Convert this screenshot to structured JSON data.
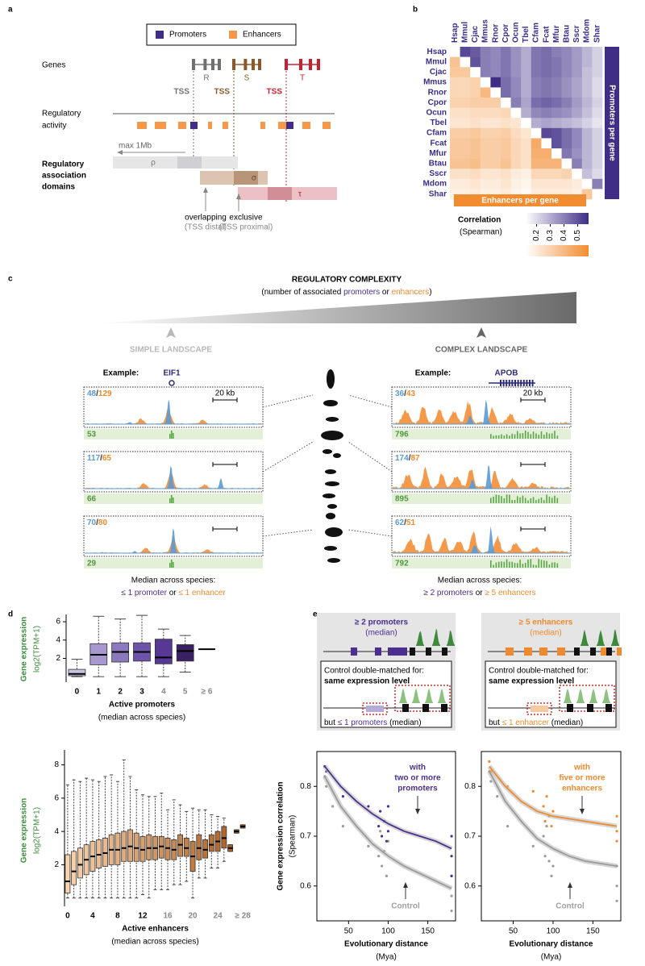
{
  "panel_labels": [
    "a",
    "b",
    "c",
    "d",
    "e"
  ],
  "panel_a": {
    "legend": [
      "Promoters",
      "Enhancers"
    ],
    "legend_colors": [
      "#3f2d86",
      "#f4994a"
    ],
    "genes_label": "Genes",
    "gene_names": [
      "R",
      "S",
      "T"
    ],
    "gene_colors": [
      "#707070",
      "#8a5a2b",
      "#c8202f"
    ],
    "tss_labels": [
      "TSS",
      "TSS",
      "TSS"
    ],
    "activity_label": [
      "Regulatory",
      "activity"
    ],
    "max_range": "max 1Mb",
    "domains_label": [
      "Regulatory",
      "association",
      "domains"
    ],
    "domain_names": [
      "ρ",
      "σ",
      "τ"
    ],
    "overlapping": [
      "overlapping",
      "(TSS distal)"
    ],
    "exclusive": [
      "exclusive",
      "(TSS proximal)"
    ]
  },
  "chart_data": [
    {
      "type": "heatmap",
      "species": [
        "Hsap",
        "Mmul",
        "Cjac",
        "Mmus",
        "Rnor",
        "Cpor",
        "Ocun",
        "Tbel",
        "Cfam",
        "Fcat",
        "Mfur",
        "Btau",
        "Sscr",
        "Mdom",
        "Shar"
      ],
      "matrix": [
        [
          null,
          0.52,
          0.48,
          0.4,
          0.38,
          0.42,
          0.36,
          0.3,
          0.42,
          0.44,
          0.4,
          0.38,
          0.34,
          0.28,
          0.22
        ],
        [
          0.36,
          null,
          0.5,
          0.4,
          0.38,
          0.42,
          0.36,
          0.3,
          0.42,
          0.44,
          0.42,
          0.38,
          0.34,
          0.28,
          0.22
        ],
        [
          0.34,
          0.34,
          null,
          0.4,
          0.38,
          0.42,
          0.36,
          0.3,
          0.42,
          0.44,
          0.42,
          0.38,
          0.34,
          0.26,
          0.22
        ],
        [
          0.28,
          0.28,
          0.3,
          null,
          0.58,
          0.44,
          0.38,
          0.3,
          0.4,
          0.42,
          0.4,
          0.36,
          0.32,
          0.26,
          0.2
        ],
        [
          0.28,
          0.28,
          0.3,
          0.4,
          null,
          0.44,
          0.38,
          0.3,
          0.4,
          0.42,
          0.4,
          0.36,
          0.32,
          0.26,
          0.2
        ],
        [
          0.3,
          0.3,
          0.32,
          0.32,
          0.32,
          null,
          0.4,
          0.32,
          0.44,
          0.46,
          0.44,
          0.4,
          0.34,
          0.28,
          0.22
        ],
        [
          0.24,
          0.24,
          0.26,
          0.26,
          0.26,
          0.28,
          null,
          0.3,
          0.38,
          0.4,
          0.38,
          0.36,
          0.32,
          0.26,
          0.2
        ],
        [
          0.22,
          0.22,
          0.24,
          0.22,
          0.22,
          0.24,
          0.22,
          null,
          0.3,
          0.32,
          0.3,
          0.28,
          0.26,
          0.22,
          0.18
        ],
        [
          0.32,
          0.32,
          0.34,
          0.3,
          0.3,
          0.32,
          0.26,
          0.22,
          null,
          0.52,
          0.5,
          0.44,
          0.38,
          0.28,
          0.22
        ],
        [
          0.34,
          0.34,
          0.36,
          0.32,
          0.32,
          0.34,
          0.28,
          0.24,
          0.46,
          null,
          0.5,
          0.44,
          0.38,
          0.28,
          0.22
        ],
        [
          0.34,
          0.34,
          0.36,
          0.32,
          0.32,
          0.34,
          0.28,
          0.24,
          0.44,
          0.44,
          null,
          0.42,
          0.36,
          0.28,
          0.22
        ],
        [
          0.36,
          0.36,
          0.38,
          0.32,
          0.32,
          0.36,
          0.28,
          0.24,
          0.42,
          0.42,
          0.42,
          null,
          0.4,
          0.28,
          0.22
        ],
        [
          0.24,
          0.24,
          0.26,
          0.22,
          0.22,
          0.24,
          0.2,
          0.18,
          0.28,
          0.28,
          0.28,
          0.3,
          null,
          0.26,
          0.2
        ],
        [
          0.2,
          0.2,
          0.22,
          0.2,
          0.2,
          0.22,
          0.18,
          0.16,
          0.22,
          0.22,
          0.22,
          0.22,
          0.2,
          null,
          0.4
        ],
        [
          0.18,
          0.18,
          0.2,
          0.18,
          0.18,
          0.2,
          0.16,
          0.14,
          0.2,
          0.2,
          0.2,
          0.2,
          0.18,
          0.34,
          null
        ]
      ],
      "upper_label": "Promoters per gene",
      "lower_label": "Enhancers per gene",
      "upper_color": "#3f2d86",
      "lower_color": "#f28c30",
      "colorbar_title": "Correlation",
      "colorbar_subtitle": "(Spearman)",
      "clim": [
        0.12,
        0.58
      ],
      "colorbar_ticks": [
        0.2,
        0.3,
        0.4,
        0.5
      ]
    },
    {
      "type": "box",
      "y_label": [
        "Gene expression",
        "log2(TPM+1)"
      ],
      "x_label": "Active promoters",
      "x_sublabel": "(median across species)",
      "categories": [
        "0",
        "1",
        "2",
        "3",
        "4",
        "5",
        "≥ 6"
      ],
      "category_label_colors": [
        "#000000",
        "#000000",
        "#000000",
        "#000000",
        "#888888",
        "#888888",
        "#888888"
      ],
      "whislo": [
        0,
        0,
        0,
        0,
        0,
        0.5,
        null
      ],
      "q1": [
        0.1,
        1.3,
        1.6,
        1.7,
        1.4,
        1.7,
        null
      ],
      "median": [
        0.3,
        2.4,
        2.7,
        2.7,
        2.1,
        2.8,
        3.0
      ],
      "q3": [
        0.8,
        3.6,
        3.7,
        3.7,
        4.1,
        3.5,
        null
      ],
      "whishi": [
        1.9,
        6.6,
        6.3,
        6.7,
        5.2,
        4.5,
        null
      ],
      "colors": [
        "#cbc3e3",
        "#a898cf",
        "#8c79bd",
        "#6e53a9",
        "#573895",
        "#3a2164",
        "#000000"
      ],
      "ylim": [
        -0.6,
        6.8
      ],
      "yticks": [
        2,
        4,
        6
      ]
    },
    {
      "type": "box",
      "y_label": [
        "Gene expression",
        "log2(TPM+1)"
      ],
      "x_label": "Active enhancers",
      "x_sublabel": "(median across species)",
      "categories": [
        "0",
        null,
        null,
        null,
        "4",
        null,
        null,
        null,
        "8",
        null,
        null,
        null,
        "12",
        null,
        null,
        null,
        "16",
        null,
        null,
        null,
        "20",
        null,
        null,
        null,
        "24",
        null,
        null,
        null,
        "≥ 28"
      ],
      "category_label_colors": [
        "#000000",
        null,
        null,
        null,
        "#000000",
        null,
        null,
        null,
        "#000000",
        null,
        null,
        null,
        "#000000",
        null,
        null,
        null,
        "#888888",
        null,
        null,
        null,
        "#888888",
        null,
        null,
        null,
        "#888888",
        null,
        null,
        null,
        "#888888"
      ],
      "whislo": [
        0,
        0,
        0,
        0,
        0,
        0,
        0,
        0,
        0,
        0,
        0,
        0,
        0.2,
        0,
        0.5,
        0.5,
        0.5,
        0.8,
        0.8,
        1,
        0,
        1.2,
        1.2,
        1.8,
        1.8,
        2.2,
        2.8,
        3.9,
        4.2
      ],
      "q1": [
        0.3,
        0.8,
        1.2,
        1.4,
        1.6,
        1.8,
        1.9,
        2.0,
        2.0,
        2.2,
        2.2,
        2.2,
        2.2,
        2.3,
        2.3,
        2.4,
        2.3,
        2.3,
        2.5,
        2.5,
        1.6,
        2.3,
        2.4,
        2.8,
        2.8,
        3.0,
        2.8,
        3.9,
        4.2
      ],
      "median": [
        1.0,
        1.6,
        2.0,
        2.3,
        2.5,
        2.6,
        2.7,
        2.9,
        2.9,
        3.0,
        3.1,
        3.0,
        2.9,
        3.0,
        3.0,
        3.1,
        3.0,
        2.9,
        3.2,
        3.0,
        2.5,
        3.0,
        2.9,
        3.2,
        3.4,
        3.6,
        3.0,
        4.0,
        4.3
      ],
      "q3": [
        2.6,
        2.8,
        3.0,
        3.2,
        3.4,
        3.5,
        3.6,
        3.8,
        3.9,
        4.0,
        4.1,
        3.9,
        3.7,
        3.8,
        3.7,
        3.7,
        3.6,
        3.5,
        3.8,
        3.6,
        3.4,
        3.8,
        3.5,
        3.8,
        4.0,
        4.3,
        3.2,
        4.1,
        4.4
      ],
      "whishi": [
        6.8,
        7.1,
        7.0,
        7.2,
        7.1,
        7.0,
        7.3,
        7.4,
        7.0,
        8.3,
        7.3,
        6.5,
        6.2,
        6.1,
        6.1,
        6.3,
        5.3,
        5.9,
        5.6,
        5.2,
        5.4,
        5.3,
        5.3,
        5.0,
        4.9,
        4.8,
        3.2,
        4.1,
        4.4
      ],
      "color_range": [
        "#f9d3ae",
        "#a8591b"
      ],
      "ylim": [
        -0.5,
        8.9
      ],
      "yticks": [
        2,
        4,
        6,
        8
      ]
    },
    {
      "type": "scatter",
      "y_label": [
        "Gene expression correlation",
        "(Spearman)"
      ],
      "x_label": [
        "Evolutionary distance",
        "(Mya)"
      ],
      "xlim": [
        10,
        185
      ],
      "xticks": [
        50,
        100,
        150
      ],
      "ylim": [
        0.53,
        0.87
      ],
      "yticks": [
        0.6,
        0.7,
        0.8
      ],
      "series": [
        {
          "label_lines": [
            "with",
            "two or more",
            "promoters"
          ],
          "color": "#4b2e91",
          "x": [
            20,
            22,
            43,
            75,
            88,
            90,
            92,
            95,
            98,
            100,
            100,
            180,
            180,
            180
          ],
          "values": [
            0.84,
            0.83,
            0.78,
            0.76,
            0.72,
            0.75,
            0.7,
            0.73,
            0.69,
            0.76,
            0.71,
            0.7,
            0.66,
            0.62
          ],
          "fit_x": [
            20,
            40,
            60,
            80,
            100,
            120,
            140,
            160,
            180
          ],
          "fit_values": [
            0.84,
            0.8,
            0.77,
            0.745,
            0.725,
            0.71,
            0.7,
            0.69,
            0.675
          ]
        },
        {
          "name": "Control",
          "color": "#9a9a9a",
          "x": [
            20,
            22,
            30,
            43,
            75,
            88,
            90,
            92,
            95,
            98,
            100,
            180,
            180,
            180
          ],
          "values": [
            0.82,
            0.8,
            0.76,
            0.72,
            0.68,
            0.66,
            0.71,
            0.64,
            0.67,
            0.62,
            0.69,
            0.62,
            0.58,
            0.55
          ],
          "fit_x": [
            20,
            40,
            60,
            80,
            100,
            120,
            140,
            160,
            180
          ],
          "fit_values": [
            0.82,
            0.76,
            0.72,
            0.685,
            0.66,
            0.64,
            0.625,
            0.61,
            0.595
          ]
        }
      ]
    },
    {
      "type": "scatter",
      "x_label": [
        "Evolutionary distance",
        "(Mya)"
      ],
      "xlim": [
        10,
        185
      ],
      "xticks": [
        50,
        100,
        150
      ],
      "ylim": [
        0.53,
        0.87
      ],
      "yticks": [
        0.6,
        0.7,
        0.8
      ],
      "series": [
        {
          "label_lines": [
            "with",
            "five or more",
            "enhancers"
          ],
          "color": "#f08a2c",
          "x": [
            20,
            22,
            43,
            75,
            88,
            90,
            92,
            95,
            98,
            100,
            180,
            180,
            180
          ],
          "values": [
            0.85,
            0.83,
            0.8,
            0.79,
            0.76,
            0.73,
            0.78,
            0.74,
            0.72,
            0.75,
            0.74,
            0.71,
            0.69
          ],
          "fit_x": [
            20,
            40,
            60,
            80,
            100,
            120,
            140,
            160,
            180
          ],
          "fit_values": [
            0.84,
            0.8,
            0.77,
            0.75,
            0.74,
            0.735,
            0.73,
            0.725,
            0.72
          ]
        },
        {
          "name": "Control",
          "color": "#9a9a9a",
          "x": [
            20,
            22,
            30,
            43,
            75,
            88,
            90,
            92,
            95,
            98,
            100,
            180,
            180,
            180
          ],
          "values": [
            0.83,
            0.81,
            0.78,
            0.72,
            0.68,
            0.7,
            0.66,
            0.72,
            0.65,
            0.62,
            0.64,
            0.64,
            0.6,
            0.57
          ],
          "fit_x": [
            20,
            40,
            60,
            80,
            100,
            120,
            140,
            160,
            180
          ],
          "fit_values": [
            0.83,
            0.77,
            0.73,
            0.695,
            0.675,
            0.66,
            0.65,
            0.645,
            0.64
          ]
        }
      ]
    }
  ],
  "panel_c": {
    "title": "REGULATORY COMPLEXITY",
    "subtitle": [
      "(number of associated ",
      "promoters",
      " or ",
      "enhancers",
      ")"
    ],
    "landscapes": [
      "SIMPLE LANDSCAPE",
      "COMPLEX LANDSCAPE"
    ],
    "examples": [
      {
        "prefix": "Example:",
        "gene": "EIF1",
        "scale": "20 kb",
        "tracks": [
          {
            "promoters": "48",
            "enhancers": "129",
            "genes": "53"
          },
          {
            "promoters": "117",
            "enhancers": "65",
            "genes": "66"
          },
          {
            "promoters": "70",
            "enhancers": "80",
            "genes": "29"
          }
        ],
        "median": [
          "Median across species:",
          "≤ 1 promoter",
          " or ",
          "≤ 1 enhancer"
        ]
      },
      {
        "prefix": "Example:",
        "gene": "APOB",
        "scale": "20 kb",
        "tracks": [
          {
            "promoters": "36",
            "enhancers": "43",
            "genes": "796"
          },
          {
            "promoters": "174",
            "enhancers": "87",
            "genes": "895"
          },
          {
            "promoters": "62",
            "enhancers": "51",
            "genes": "792"
          }
        ],
        "median": [
          "Median across species:",
          "≥ 2 promoters",
          " or ",
          "≥ 5 enhancers"
        ]
      }
    ],
    "separator": "/"
  },
  "panel_e_schemes": [
    {
      "header": [
        "≥ 2 promoters",
        "(median)"
      ],
      "control": [
        "Control double-matched for:",
        "same expression level"
      ],
      "footer": [
        "but ",
        "≤ 1 promoters",
        " (median)"
      ],
      "color": "#4b2e91"
    },
    {
      "header": [
        "≥ 5 enhancers",
        "(median)"
      ],
      "control": [
        "Control double-matched for:",
        "same expression level"
      ],
      "footer": [
        "but ",
        "≤ 1 enhancer",
        " (median)"
      ],
      "color": "#f08a2c"
    }
  ]
}
